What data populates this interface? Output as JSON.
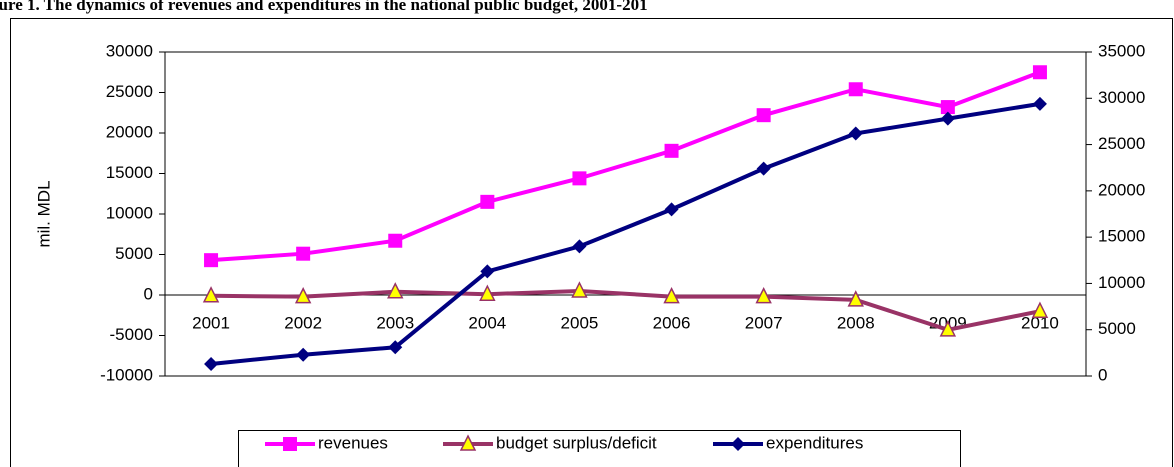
{
  "chart_data": {
    "type": "line",
    "title": "gure 1. The dynamics of revenues and expenditures in the national public budget, 2001-201",
    "y_label": "mil. MDL",
    "categories": [
      "2001",
      "2002",
      "2003",
      "2004",
      "2005",
      "2006",
      "2007",
      "2008",
      "2009",
      "2010"
    ],
    "series": [
      {
        "name": "revenues",
        "color": "#ff00ff",
        "marker": "square",
        "values": [
          4300,
          5100,
          6700,
          11500,
          14400,
          17800,
          22200,
          25400,
          23200,
          27500
        ]
      },
      {
        "name": "budget surplus/deficit",
        "color": "#993366",
        "marker": "triangle",
        "values": [
          -100,
          -200,
          400,
          100,
          500,
          -200,
          -200,
          -600,
          -4300,
          -2000
        ]
      },
      {
        "name": "expenditures",
        "color": "#000080",
        "marker": "diamond",
        "axis": "y2",
        "values": [
          1300,
          2300,
          3100,
          11300,
          14000,
          18000,
          22400,
          26200,
          27800,
          29400
        ]
      }
    ],
    "ylim": [
      -10000,
      30000
    ],
    "yticks": [
      -10000,
      -5000,
      0,
      5000,
      10000,
      15000,
      20000,
      25000,
      30000
    ],
    "y2lim": [
      0,
      35000
    ],
    "y2ticks": [
      0,
      5000,
      10000,
      15000,
      20000,
      25000,
      30000,
      35000
    ],
    "grid": false,
    "legend": "bottom"
  }
}
